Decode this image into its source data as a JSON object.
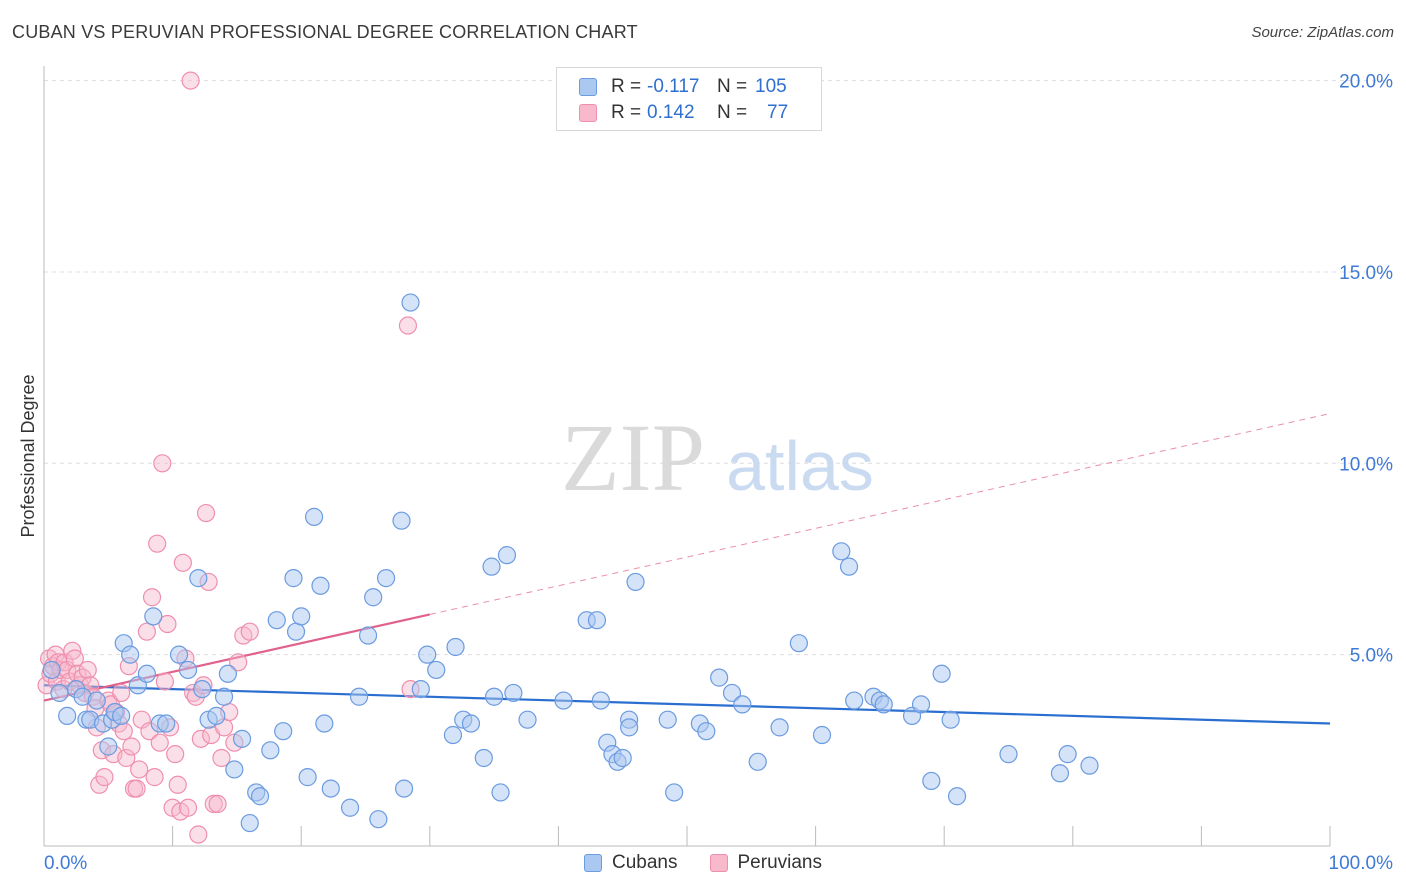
{
  "header": {
    "title": "CUBAN VS PERUVIAN PROFESSIONAL DEGREE CORRELATION CHART",
    "source": "Source: ZipAtlas.com"
  },
  "watermark": {
    "zip": "ZIP",
    "atlas": "atlas"
  },
  "legend": {
    "rows": [
      {
        "r_label": "R =",
        "r_value": "-0.117",
        "n_label": "N =",
        "n_value": "105"
      },
      {
        "r_label": "R =",
        "r_value": "0.142",
        "n_label": "N =",
        "n_value": "77"
      }
    ]
  },
  "bottom_legend": {
    "cubans": "Cubans",
    "peruvians": "Peruvians"
  },
  "colors": {
    "cubans_fill": "#aac8f0",
    "cubans_stroke": "#6b9be0",
    "cubans_line": "#2a6fd0",
    "peruvians_fill": "#f7b9cb",
    "peruvians_stroke": "#ef8fae",
    "peruvians_line": "#e0628b",
    "tick_label": "#3f7ad6",
    "grid": "#dddddd"
  },
  "chart_data": {
    "type": "scatter",
    "title": "CUBAN VS PERUVIAN PROFESSIONAL DEGREE CORRELATION CHART",
    "xlabel": "",
    "ylabel": "Professional Degree",
    "xlim": [
      0,
      100
    ],
    "ylim": [
      0,
      20.5
    ],
    "x_tick_labels": [
      "0.0%",
      "100.0%"
    ],
    "y_ticks": [
      5,
      10,
      15,
      20
    ],
    "y_tick_labels": [
      "5.0%",
      "10.0%",
      "15.0%",
      "20.0%"
    ],
    "series": [
      {
        "name": "Cubans",
        "r": -0.117,
        "n": 105,
        "trend": {
          "x0": 0,
          "y0": 4.2,
          "x1": 100,
          "y1": 3.2
        },
        "points": [
          [
            0.6,
            4.6
          ],
          [
            1.2,
            4.0
          ],
          [
            1.8,
            3.4
          ],
          [
            2.5,
            4.1
          ],
          [
            3.0,
            3.9
          ],
          [
            3.3,
            3.3
          ],
          [
            3.6,
            3.3
          ],
          [
            4.1,
            3.8
          ],
          [
            4.6,
            3.2
          ],
          [
            5.0,
            2.6
          ],
          [
            5.3,
            3.3
          ],
          [
            5.5,
            3.5
          ],
          [
            6.0,
            3.4
          ],
          [
            6.2,
            5.3
          ],
          [
            6.7,
            5.0
          ],
          [
            7.3,
            4.2
          ],
          [
            8.0,
            4.5
          ],
          [
            8.5,
            6.0
          ],
          [
            9.0,
            3.2
          ],
          [
            9.5,
            3.2
          ],
          [
            10.5,
            5.0
          ],
          [
            11.2,
            4.6
          ],
          [
            12.0,
            7.0
          ],
          [
            12.3,
            4.1
          ],
          [
            12.8,
            3.3
          ],
          [
            13.4,
            3.4
          ],
          [
            14.0,
            3.9
          ],
          [
            14.3,
            4.5
          ],
          [
            14.8,
            2.0
          ],
          [
            15.4,
            2.8
          ],
          [
            16.0,
            0.6
          ],
          [
            16.5,
            1.4
          ],
          [
            16.8,
            1.3
          ],
          [
            17.6,
            2.5
          ],
          [
            18.1,
            5.9
          ],
          [
            18.6,
            3.0
          ],
          [
            19.4,
            7.0
          ],
          [
            19.6,
            5.6
          ],
          [
            20.0,
            6.0
          ],
          [
            20.5,
            1.8
          ],
          [
            21.0,
            8.6
          ],
          [
            21.5,
            6.8
          ],
          [
            21.8,
            3.2
          ],
          [
            22.3,
            1.5
          ],
          [
            23.8,
            1.0
          ],
          [
            24.5,
            3.9
          ],
          [
            25.2,
            5.5
          ],
          [
            25.6,
            6.5
          ],
          [
            26.0,
            0.7
          ],
          [
            26.6,
            7.0
          ],
          [
            27.8,
            8.5
          ],
          [
            28.0,
            1.5
          ],
          [
            28.5,
            14.2
          ],
          [
            29.3,
            4.1
          ],
          [
            29.8,
            5.0
          ],
          [
            30.5,
            4.6
          ],
          [
            31.8,
            2.9
          ],
          [
            32.0,
            5.2
          ],
          [
            32.6,
            3.3
          ],
          [
            33.2,
            3.2
          ],
          [
            34.2,
            2.3
          ],
          [
            34.8,
            7.3
          ],
          [
            35.0,
            3.9
          ],
          [
            35.5,
            1.4
          ],
          [
            36.0,
            7.6
          ],
          [
            36.5,
            4.0
          ],
          [
            37.6,
            3.3
          ],
          [
            40.4,
            3.8
          ],
          [
            42.2,
            5.9
          ],
          [
            43.0,
            5.9
          ],
          [
            43.3,
            3.8
          ],
          [
            43.8,
            2.7
          ],
          [
            44.2,
            2.4
          ],
          [
            44.6,
            2.2
          ],
          [
            45.0,
            2.3
          ],
          [
            45.5,
            3.3
          ],
          [
            46.0,
            6.9
          ],
          [
            48.5,
            3.3
          ],
          [
            49.0,
            1.4
          ],
          [
            51.0,
            3.2
          ],
          [
            51.5,
            3.0
          ],
          [
            52.5,
            4.4
          ],
          [
            53.5,
            4.0
          ],
          [
            54.3,
            3.7
          ],
          [
            55.5,
            2.2
          ],
          [
            57.2,
            3.1
          ],
          [
            58.7,
            5.3
          ],
          [
            60.5,
            2.9
          ],
          [
            62.0,
            7.7
          ],
          [
            62.6,
            7.3
          ],
          [
            63.0,
            3.8
          ],
          [
            64.5,
            3.9
          ],
          [
            65.0,
            3.8
          ],
          [
            65.3,
            3.7
          ],
          [
            67.5,
            3.4
          ],
          [
            68.2,
            3.7
          ],
          [
            69.0,
            1.7
          ],
          [
            69.8,
            4.5
          ],
          [
            70.5,
            3.3
          ],
          [
            71.0,
            1.3
          ],
          [
            75.0,
            2.4
          ],
          [
            79.0,
            1.9
          ],
          [
            79.6,
            2.4
          ],
          [
            81.3,
            2.1
          ],
          [
            45.5,
            3.1
          ]
        ]
      },
      {
        "name": "Peruvians",
        "r": 0.142,
        "n": 77,
        "trend": {
          "x0": 0,
          "y0": 3.8,
          "x1": 100,
          "y1": 11.3,
          "solid_until_x": 30
        },
        "points": [
          [
            0.2,
            4.2
          ],
          [
            0.4,
            4.9
          ],
          [
            0.5,
            4.5
          ],
          [
            0.7,
            4.7
          ],
          [
            0.9,
            5.0
          ],
          [
            1.0,
            4.3
          ],
          [
            1.1,
            4.8
          ],
          [
            1.3,
            4.6
          ],
          [
            1.5,
            4.1
          ],
          [
            1.6,
            4.8
          ],
          [
            1.8,
            4.6
          ],
          [
            2.0,
            4.3
          ],
          [
            2.2,
            5.1
          ],
          [
            2.4,
            4.9
          ],
          [
            2.6,
            4.5
          ],
          [
            2.8,
            4.2
          ],
          [
            3.0,
            4.4
          ],
          [
            3.2,
            4.0
          ],
          [
            3.4,
            4.6
          ],
          [
            3.6,
            4.2
          ],
          [
            3.8,
            3.9
          ],
          [
            4.0,
            3.6
          ],
          [
            4.1,
            3.1
          ],
          [
            4.3,
            1.6
          ],
          [
            4.5,
            2.5
          ],
          [
            4.7,
            1.8
          ],
          [
            5.0,
            3.8
          ],
          [
            5.2,
            3.7
          ],
          [
            5.4,
            2.4
          ],
          [
            5.6,
            3.5
          ],
          [
            5.8,
            3.2
          ],
          [
            6.0,
            4.0
          ],
          [
            6.2,
            3.0
          ],
          [
            6.4,
            2.3
          ],
          [
            6.6,
            4.7
          ],
          [
            6.8,
            2.6
          ],
          [
            7.0,
            1.5
          ],
          [
            7.2,
            1.5
          ],
          [
            7.4,
            2.0
          ],
          [
            7.6,
            3.3
          ],
          [
            8.0,
            5.6
          ],
          [
            8.2,
            3.0
          ],
          [
            8.4,
            6.5
          ],
          [
            8.6,
            1.8
          ],
          [
            8.8,
            7.9
          ],
          [
            9.0,
            2.7
          ],
          [
            9.2,
            10.0
          ],
          [
            9.4,
            4.3
          ],
          [
            9.6,
            5.8
          ],
          [
            9.8,
            3.1
          ],
          [
            10.0,
            1.0
          ],
          [
            10.2,
            2.4
          ],
          [
            10.4,
            1.6
          ],
          [
            10.6,
            0.9
          ],
          [
            10.8,
            7.4
          ],
          [
            11.0,
            4.9
          ],
          [
            11.2,
            1.0
          ],
          [
            11.4,
            20.0
          ],
          [
            11.6,
            4.0
          ],
          [
            11.8,
            3.9
          ],
          [
            12.0,
            0.3
          ],
          [
            12.2,
            2.8
          ],
          [
            12.4,
            4.2
          ],
          [
            12.6,
            8.7
          ],
          [
            12.8,
            6.9
          ],
          [
            13.0,
            2.9
          ],
          [
            13.2,
            1.1
          ],
          [
            13.5,
            1.1
          ],
          [
            13.8,
            2.3
          ],
          [
            14.0,
            3.1
          ],
          [
            14.4,
            3.5
          ],
          [
            14.8,
            2.7
          ],
          [
            15.1,
            4.8
          ],
          [
            15.5,
            5.5
          ],
          [
            16.0,
            5.6
          ],
          [
            28.3,
            13.6
          ],
          [
            28.5,
            4.1
          ]
        ]
      }
    ]
  }
}
